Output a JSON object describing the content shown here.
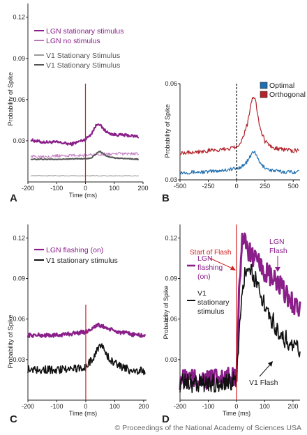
{
  "colors": {
    "purple": "#8a1f8a",
    "purple_light": "#c27cc2",
    "gray": "#555555",
    "gray_light": "#9a9a9a",
    "red_line": "#d21f1f",
    "blue": "#1f6fb0",
    "dark_red": "#b2232a",
    "black": "#111111"
  },
  "copyright": "© Proceedings of the National Academy of Sciences USA",
  "annotations": {
    "start_of_flash": "Start of Flash",
    "lgn_flash": "LGN\nFlash",
    "v1_flash": "V1 Flash"
  },
  "chart_data": [
    {
      "type": "line",
      "panel_label": "A",
      "xlabel": "Time (ms)",
      "ylabel": "Probability of Spike",
      "xlim": [
        -200,
        200
      ],
      "ylim": [
        0,
        0.13
      ],
      "xticks": [
        -200,
        -100,
        0,
        100,
        200
      ],
      "yticks": [
        0.03,
        0.06,
        0.09,
        0.12
      ],
      "ytick_labels": [
        "0.03",
        "0.06",
        "0.09",
        "0.12"
      ],
      "vline": {
        "x": 0,
        "style": "solid",
        "color": "#d21f1f"
      },
      "legend": "top-left",
      "series": [
        {
          "name": "LGN stationary stimulus",
          "color": "#8a1f8a",
          "width": 2.2,
          "x": [
            -190,
            -150,
            -100,
            -50,
            0,
            20,
            35,
            45,
            60,
            80,
            100,
            140,
            185
          ],
          "y": [
            0.0305,
            0.029,
            0.029,
            0.0275,
            0.031,
            0.035,
            0.0405,
            0.043,
            0.039,
            0.0355,
            0.0345,
            0.034,
            0.033
          ],
          "noise": 0.001
        },
        {
          "name": "LGN no stimulus",
          "color": "#c27cc2",
          "width": 1.0,
          "x": [
            -190,
            -100,
            0,
            50,
            100,
            185
          ],
          "y": [
            0.0185,
            0.019,
            0.0195,
            0.02,
            0.0205,
            0.0205
          ],
          "noise": 0.0011
        },
        {
          "name": "V1 Stationary Stimulus",
          "color": "#555555",
          "width": 2.0,
          "x": [
            -190,
            -100,
            0,
            20,
            40,
            50,
            70,
            100,
            185
          ],
          "y": [
            0.0165,
            0.0165,
            0.017,
            0.0175,
            0.021,
            0.0225,
            0.019,
            0.0175,
            0.0165
          ],
          "noise": 0.0003
        },
        {
          "name": "V1 Stationary Stimulus",
          "color": "#9a9a9a",
          "width": 1.0,
          "x": [
            -190,
            0,
            185
          ],
          "y": [
            0.0045,
            0.0045,
            0.0045
          ],
          "noise": 0.0003
        }
      ]
    },
    {
      "type": "line",
      "panel_label": "B",
      "xlabel": "",
      "ylabel": "Probability of Spike",
      "xlim": [
        -500,
        560
      ],
      "ylim": [
        0.03,
        0.06
      ],
      "xticks": [
        -500,
        -250,
        0,
        250,
        500
      ],
      "yticks": [
        0.03,
        0.06
      ],
      "ytick_labels": [
        "0.03",
        "0.06"
      ],
      "vline": {
        "x": 0,
        "style": "dashed",
        "color": "#111111"
      },
      "legend": "top-right",
      "series": [
        {
          "name": "Optimal",
          "color": "#1f6fb0",
          "width": 1.2,
          "x": [
            -500,
            -250,
            0,
            60,
            100,
            140,
            160,
            180,
            220,
            300,
            400,
            550
          ],
          "y": [
            0.0323,
            0.0325,
            0.0335,
            0.0345,
            0.036,
            0.0385,
            0.039,
            0.037,
            0.0345,
            0.033,
            0.0325,
            0.0325
          ],
          "noise": 0.0006
        },
        {
          "name": "Orthogonal",
          "color": "#b2232a",
          "width": 1.2,
          "x": [
            -500,
            -250,
            -100,
            0,
            50,
            100,
            130,
            160,
            180,
            200,
            250,
            300,
            400,
            550
          ],
          "y": [
            0.0385,
            0.039,
            0.0395,
            0.0405,
            0.0425,
            0.048,
            0.055,
            0.0555,
            0.052,
            0.047,
            0.042,
            0.0405,
            0.0395,
            0.039
          ],
          "noise": 0.0007
        }
      ]
    },
    {
      "type": "line",
      "panel_label": "C",
      "xlabel": "Time (ms)",
      "ylabel": "Probability of Spike",
      "xlim": [
        -200,
        210
      ],
      "ylim": [
        0,
        0.13
      ],
      "xticks": [
        -200,
        -100,
        0,
        100,
        200
      ],
      "yticks": [
        0.03,
        0.06,
        0.09,
        0.12
      ],
      "ytick_labels": [
        "0.03",
        "0.06",
        "0.09",
        "0.12"
      ],
      "vline": {
        "x": 0,
        "style": "solid",
        "color": "#d21f1f"
      },
      "legend": "top-left",
      "series": [
        {
          "name": "LGN flashing (on)",
          "color": "#8a1f8a",
          "width": 2.4,
          "x": [
            -200,
            -100,
            0,
            40,
            60,
            100,
            150,
            205
          ],
          "y": [
            0.048,
            0.048,
            0.0505,
            0.0555,
            0.0545,
            0.051,
            0.049,
            0.0475
          ],
          "noise": 0.0015
        },
        {
          "name": "V1 stationary stimulus",
          "color": "#111111",
          "width": 1.6,
          "x": [
            -200,
            -100,
            0,
            30,
            50,
            60,
            80,
            100,
            150,
            205
          ],
          "y": [
            0.023,
            0.0225,
            0.024,
            0.033,
            0.0415,
            0.039,
            0.031,
            0.027,
            0.0225,
            0.0215
          ],
          "noise": 0.003
        }
      ]
    },
    {
      "type": "line",
      "panel_label": "D",
      "xlabel": "Time (ms)",
      "ylabel": "Probability of Spike",
      "xlim": [
        -200,
        225
      ],
      "ylim": [
        0.0,
        0.13
      ],
      "xticks": [
        -200,
        -100,
        0,
        100,
        200
      ],
      "yticks": [
        0.03,
        0.06,
        0.09,
        0.12
      ],
      "ytick_labels": [
        "0.03",
        "0.06",
        "0.09",
        "0.12"
      ],
      "vline": {
        "x": 0,
        "style": "solid",
        "color": "#d21f1f"
      },
      "legend": "left",
      "series": [
        {
          "name": "LGN flashing (on)",
          "color": "#8a1f8a",
          "width": 3.0,
          "x": [
            -200,
            -100,
            -20,
            0,
            10,
            20,
            30,
            60,
            100,
            150,
            200,
            225
          ],
          "y": [
            0.0155,
            0.0155,
            0.016,
            0.02,
            0.085,
            0.12,
            0.115,
            0.105,
            0.095,
            0.085,
            0.072,
            0.068
          ],
          "noise": 0.008
        },
        {
          "name": "V1 stationary stimulus",
          "color": "#111111",
          "width": 1.6,
          "x": [
            -200,
            -100,
            -20,
            0,
            10,
            20,
            35,
            50,
            70,
            100,
            150,
            200,
            225
          ],
          "y": [
            0.0125,
            0.0125,
            0.0135,
            0.015,
            0.05,
            0.085,
            0.097,
            0.095,
            0.088,
            0.07,
            0.05,
            0.04,
            0.036
          ],
          "noise": 0.007
        }
      ]
    }
  ]
}
